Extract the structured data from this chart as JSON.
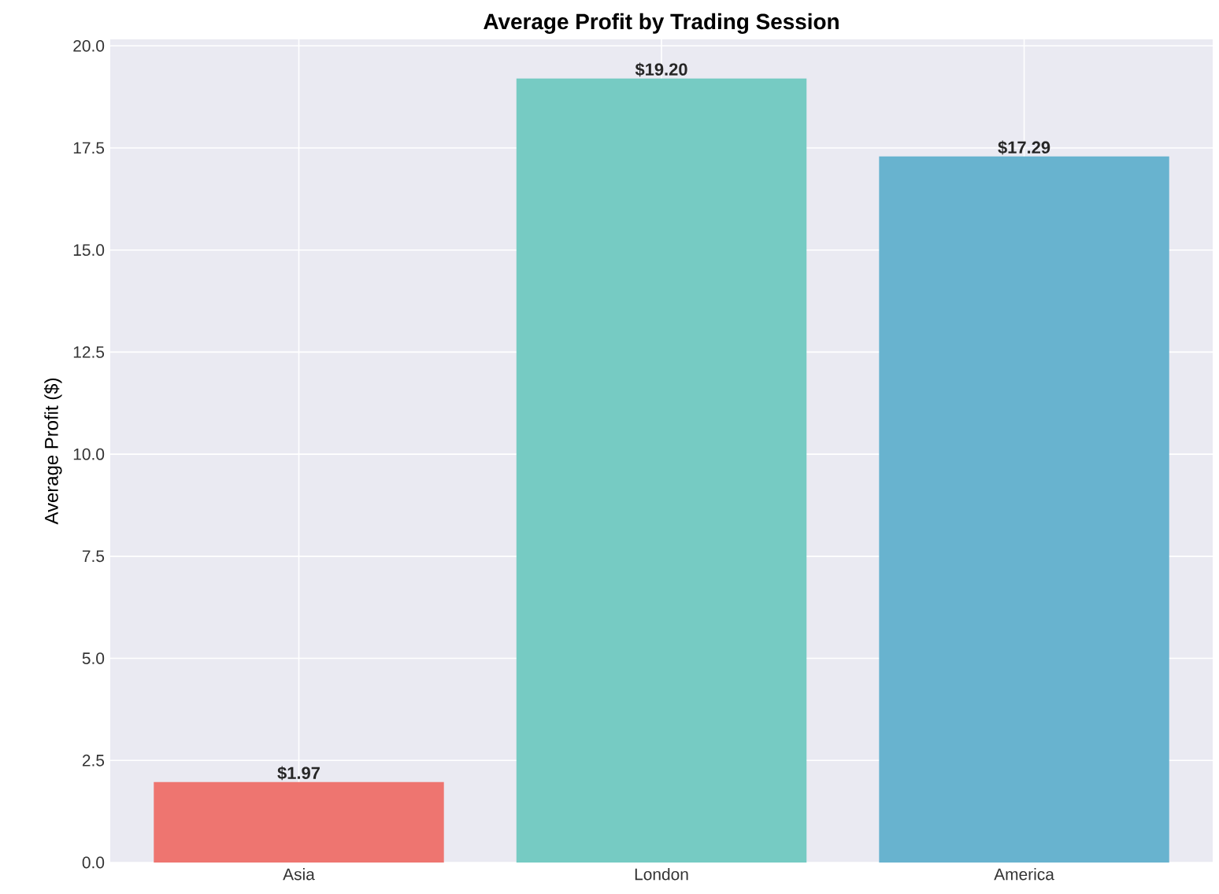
{
  "chart_data": {
    "type": "bar",
    "title": "Average Profit by Trading Session",
    "ylabel": "Average Profit ($)",
    "categories": [
      "Asia",
      "London",
      "America"
    ],
    "values": [
      1.97,
      19.2,
      17.29
    ],
    "colors": [
      "#ee7570",
      "#76cbc3",
      "#68b3cf"
    ],
    "value_labels": [
      "$1.97",
      "$19.20",
      "$17.29"
    ],
    "ylim": [
      0,
      20.16
    ],
    "yticks": [
      {
        "value": 0,
        "label": "0.0"
      },
      {
        "value": 2.5,
        "label": "2.5"
      },
      {
        "value": 5,
        "label": "5.0"
      },
      {
        "value": 7.5,
        "label": "7.5"
      },
      {
        "value": 10,
        "label": "10.0"
      },
      {
        "value": 12.5,
        "label": "12.5"
      },
      {
        "value": 15,
        "label": "15.0"
      },
      {
        "value": 17.5,
        "label": "17.5"
      },
      {
        "value": 20,
        "label": "20.0"
      }
    ],
    "grid": true
  }
}
